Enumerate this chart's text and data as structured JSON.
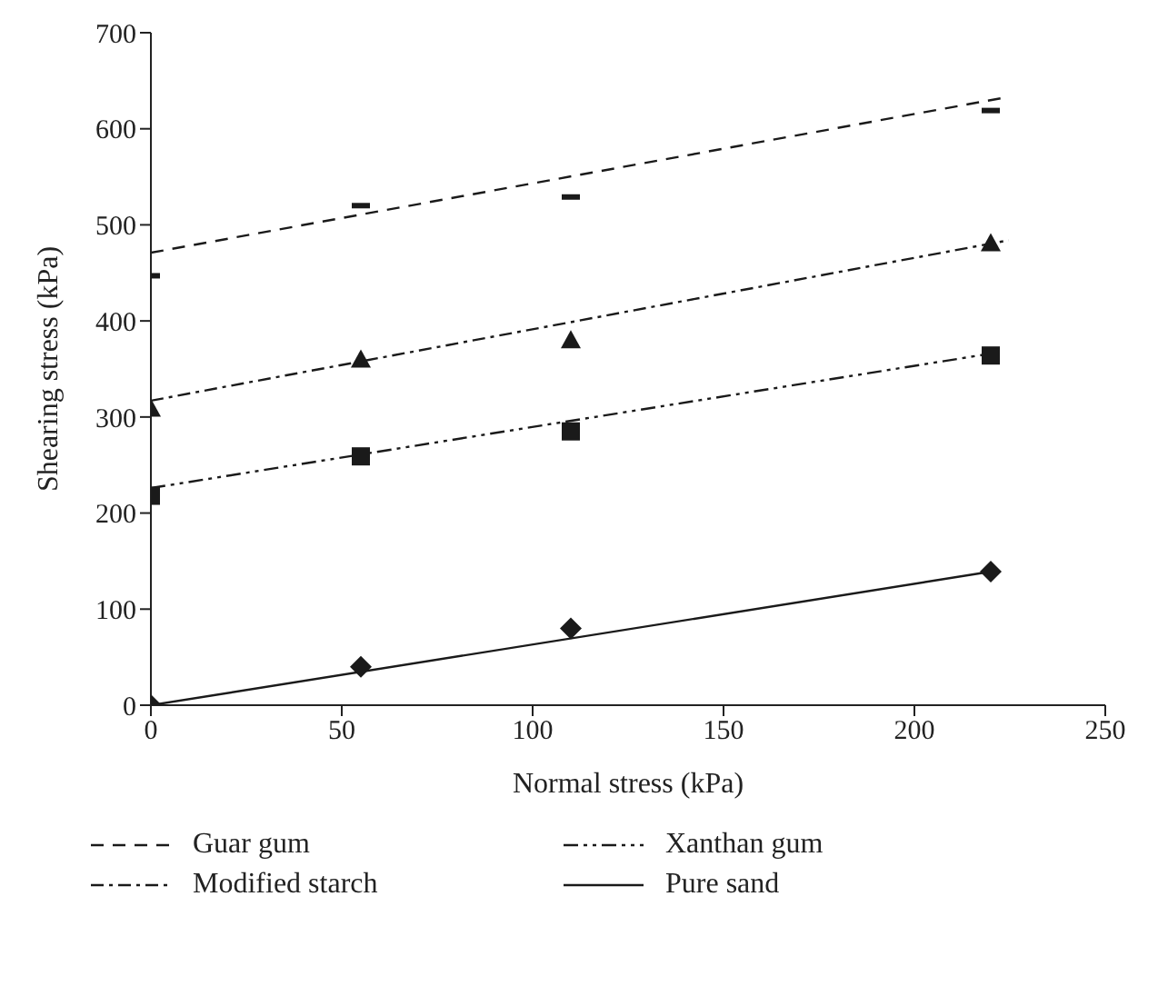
{
  "chart_data": {
    "type": "scatter",
    "xlabel": "Normal stress (kPa)",
    "ylabel": "Shearing stress (kPa)",
    "xlim": [
      0,
      250
    ],
    "xticks": [
      0,
      50,
      100,
      150,
      200,
      250
    ],
    "ylim": [
      0,
      700
    ],
    "yticks": [
      0,
      100,
      200,
      300,
      400,
      500,
      600,
      700
    ],
    "grid": false,
    "legend": "bottom",
    "series": [
      {
        "color": "#1a1a1a",
        "x": [
          0,
          55,
          110,
          220
        ],
        "values": [
          447,
          520,
          529,
          619
        ]
      },
      {
        "marker": "triangle",
        "color": "#1a1a1a",
        "x": [
          0,
          55,
          110,
          220
        ],
        "values": [
          308,
          359,
          379,
          480
        ]
      },
      {
        "marker": "square",
        "color": "#1a1a1a",
        "x": [
          0,
          55,
          110,
          220
        ],
        "values": [
          218,
          259,
          285,
          364
        ]
      },
      {
        "marker": "diamond",
        "color": "#1a1a1a",
        "x": [
          0,
          55,
          110,
          220
        ],
        "values": [
          0,
          40,
          80,
          139
        ]
      },
      {
        "type": "line",
        "name": "Guar gum",
        "line_style": "dashed",
        "color": "#1a1a1a",
        "x": [
          0,
          223
        ],
        "values": [
          471,
          632
        ]
      },
      {
        "type": "line",
        "name": "Xanthan gum",
        "line_style": "dashdotdot",
        "color": "#1a1a1a",
        "x": [
          0,
          220
        ],
        "values": [
          226,
          366
        ]
      },
      {
        "type": "line",
        "name": "Modified starch",
        "line_style": "dashdot",
        "color": "#1a1a1a",
        "x": [
          0,
          224.7
        ],
        "values": [
          317,
          484
        ]
      },
      {
        "type": "line",
        "name": "Pure sand",
        "line_style": "solid",
        "color": "#1a1a1a",
        "x": [
          0,
          220
        ],
        "values": [
          0,
          139
        ]
      }
    ]
  }
}
